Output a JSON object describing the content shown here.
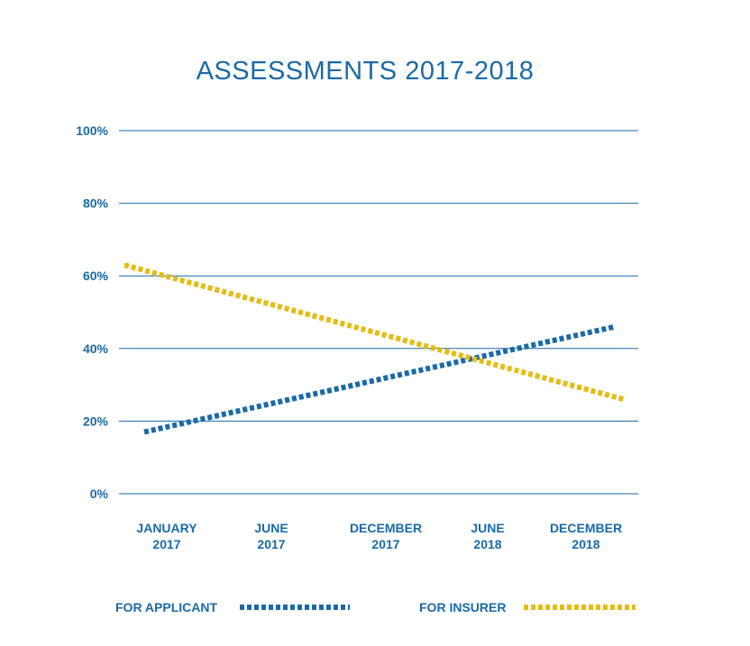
{
  "chart_data": {
    "type": "line",
    "title": "ASSESSMENTS 2017-2018",
    "xlabel": "",
    "ylabel": "",
    "categories": [
      [
        "JANUARY",
        "2017"
      ],
      [
        "JUNE",
        "2017"
      ],
      [
        "DECEMBER",
        "2017"
      ],
      [
        "JUNE",
        "2018"
      ],
      [
        "DECEMBER",
        "2018"
      ]
    ],
    "y_ticks": [
      "0%",
      "20%",
      "40%",
      "60%",
      "80%",
      "100%"
    ],
    "ylim": [
      0,
      100
    ],
    "grid": true,
    "legend_position": "bottom",
    "series": [
      {
        "name": "FOR APPLICANT",
        "color": "#1a6aa6",
        "style": "dotted",
        "start": {
          "category": 0,
          "value": 17
        },
        "end": {
          "category": 4,
          "value": 46
        }
      },
      {
        "name": "FOR INSURER",
        "color": "#e3bc14",
        "style": "dotted",
        "start": {
          "category": 0,
          "value": 63
        },
        "end": {
          "category": 4,
          "value": 26
        }
      }
    ]
  }
}
